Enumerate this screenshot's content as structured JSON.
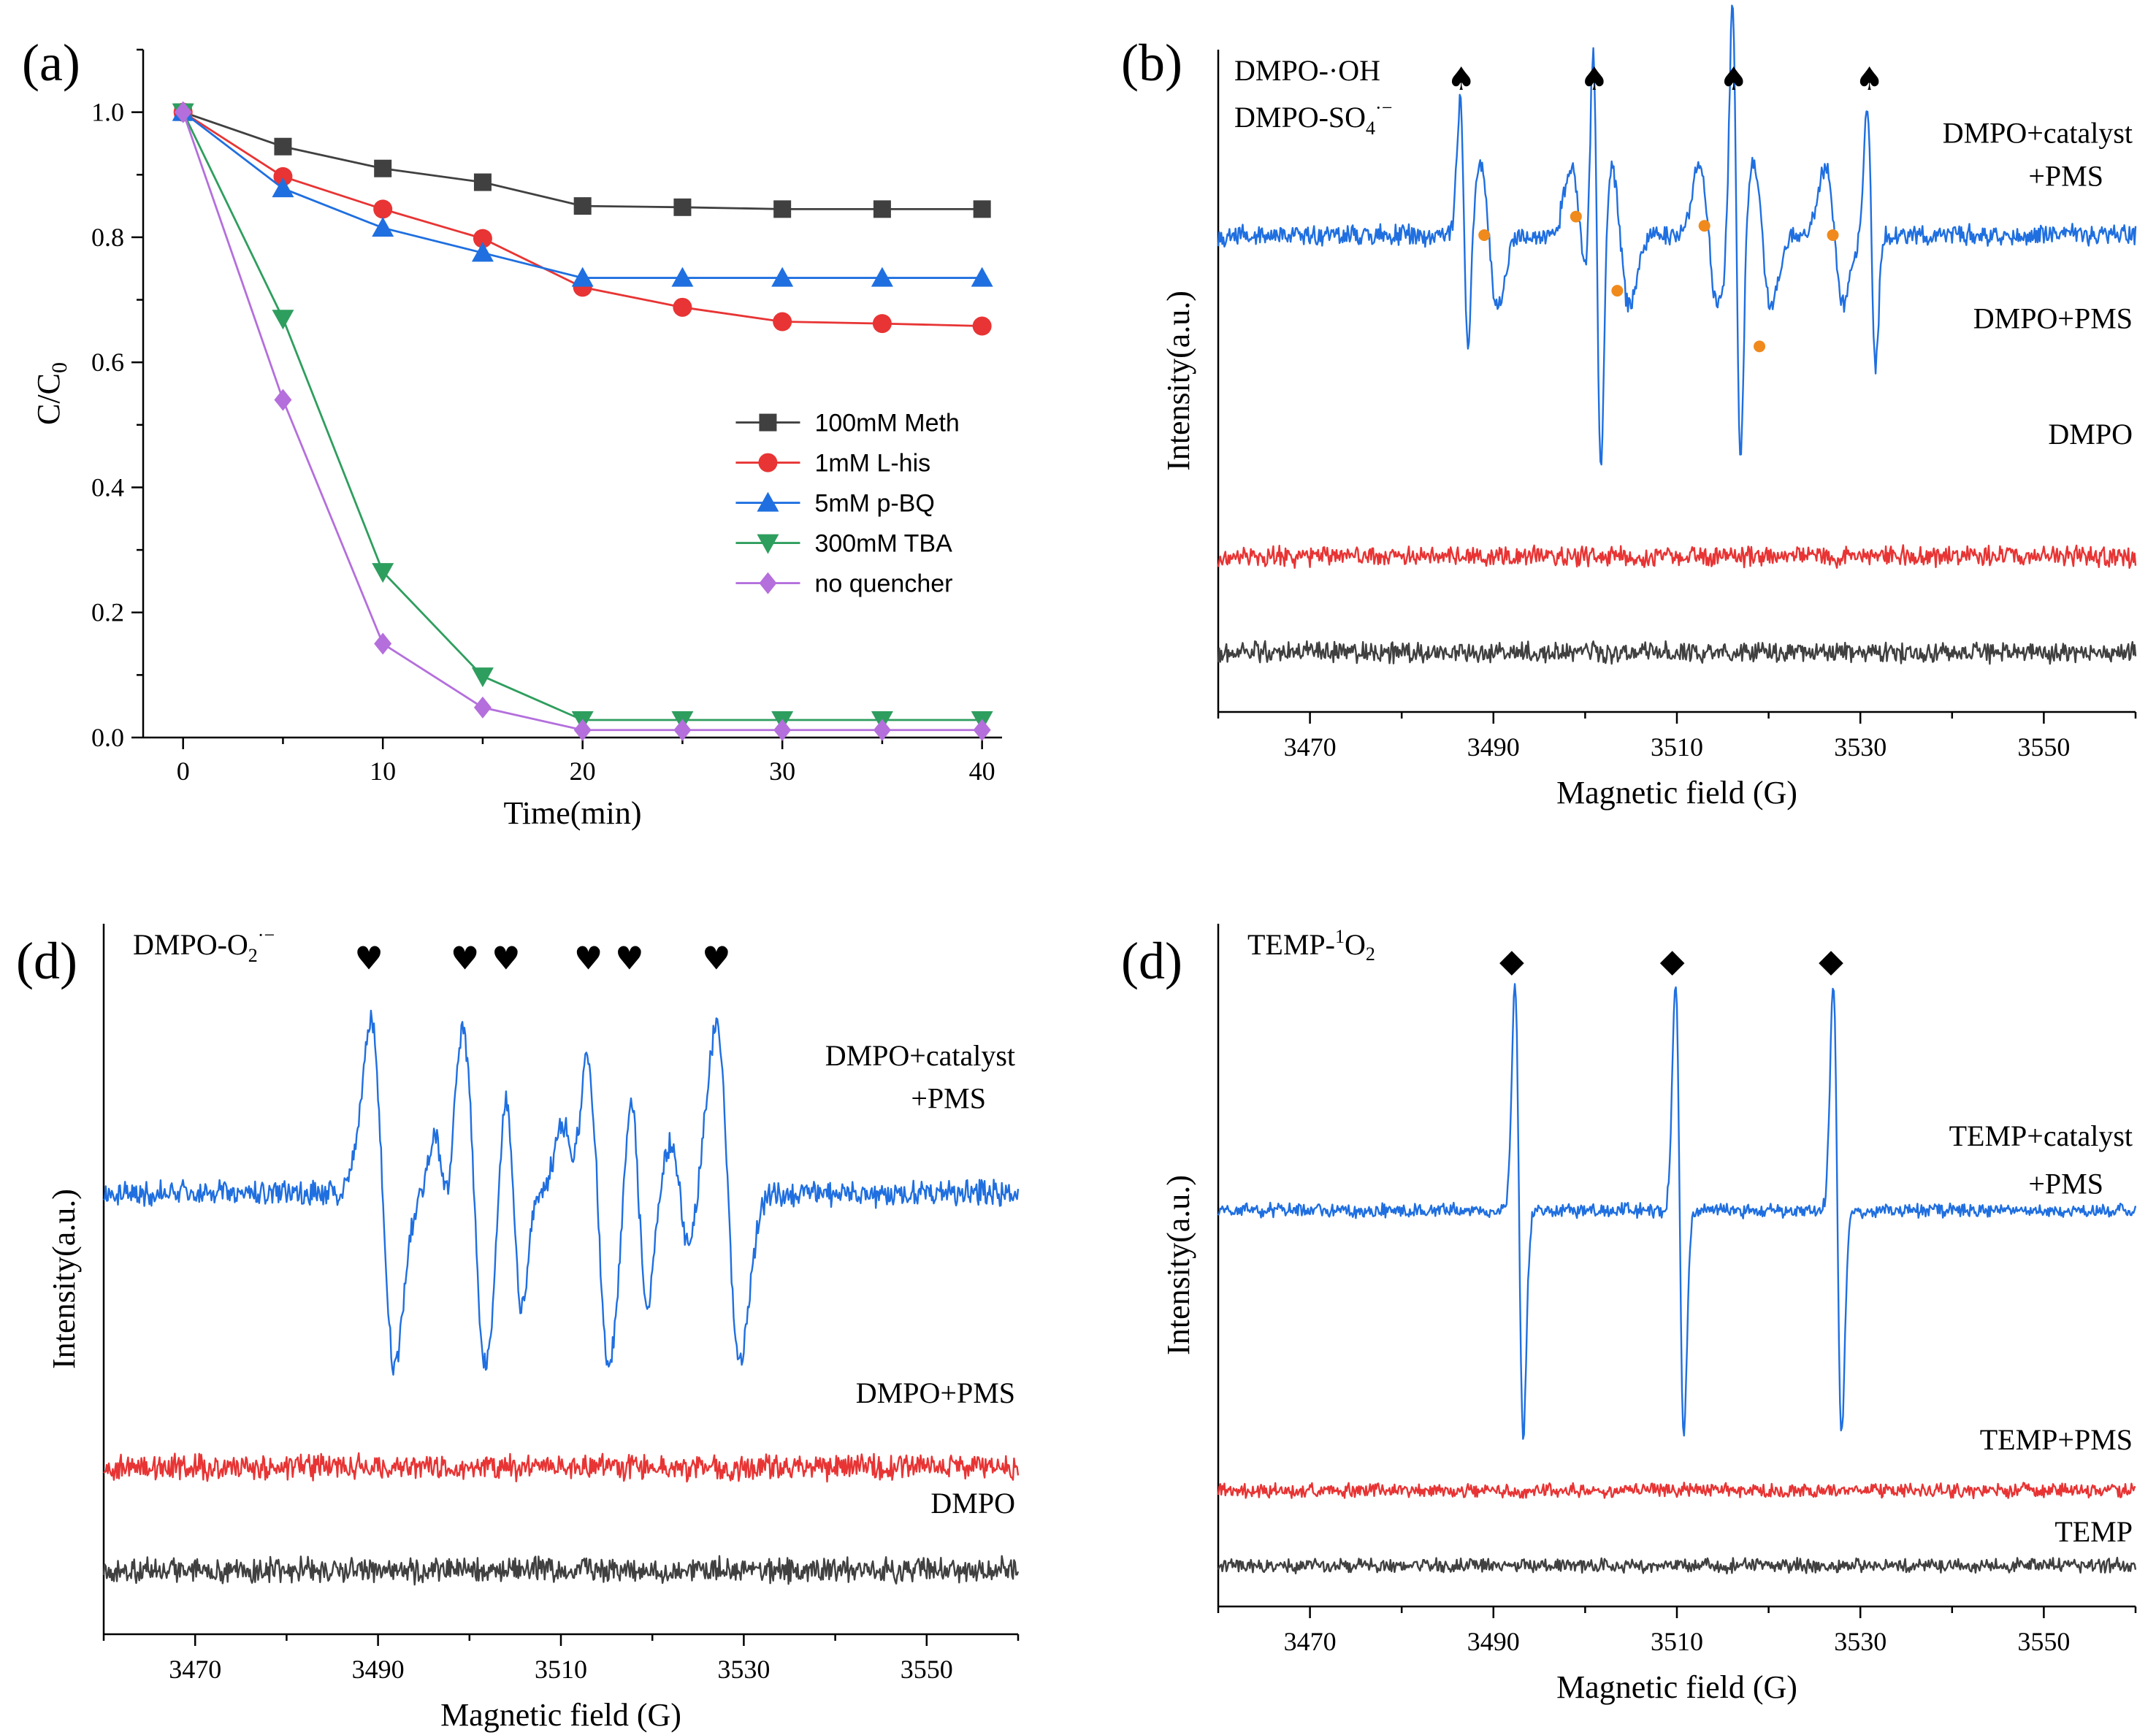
{
  "chart_data": [
    {
      "panel": "(a)",
      "type": "line",
      "xlabel": "Time(min)",
      "ylabel": "C/C",
      "ylabel_sub": "0",
      "xlim": [
        -2,
        41
      ],
      "ylim": [
        0.0,
        1.1
      ],
      "xticks": [
        0,
        10,
        20,
        30,
        40
      ],
      "yticks": [
        0.0,
        0.2,
        0.4,
        0.6,
        0.8,
        1.0
      ],
      "ytick_labels": [
        "0.0",
        "0.2",
        "0.4",
        "0.6",
        "0.8",
        "1.0"
      ],
      "legend_position": "center-right",
      "x": [
        0,
        5,
        10,
        15,
        20,
        25,
        30,
        35,
        40
      ],
      "series": [
        {
          "name": "100mM Meth",
          "color": "#404040",
          "marker": "square",
          "values": [
            1.0,
            0.945,
            0.91,
            0.888,
            0.85,
            0.848,
            0.845,
            0.845,
            0.845
          ]
        },
        {
          "name": "1mM L-his",
          "color": "#e83434",
          "marker": "circle",
          "values": [
            1.0,
            0.897,
            0.845,
            0.798,
            0.72,
            0.688,
            0.665,
            0.662,
            0.658
          ]
        },
        {
          "name": "5mM p-BQ",
          "color": "#1f6fe0",
          "marker": "triangle-up",
          "values": [
            1.0,
            0.878,
            0.815,
            0.775,
            0.735,
            0.735,
            0.735,
            0.735,
            0.735
          ]
        },
        {
          "name": "300mM TBA",
          "color": "#2e9e5e",
          "marker": "triangle-down",
          "values": [
            1.0,
            0.67,
            0.265,
            0.098,
            0.028,
            0.028,
            0.028,
            0.028,
            0.028
          ]
        },
        {
          "name": "no quencher",
          "color": "#b46fdc",
          "marker": "diamond",
          "values": [
            1.0,
            0.54,
            0.15,
            0.048,
            0.012,
            0.012,
            0.012,
            0.012,
            0.012
          ]
        }
      ]
    },
    {
      "panel": "(b)",
      "type": "line",
      "xlabel": "Magnetic field (G)",
      "ylabel": "Intensity(a.u.)",
      "xlim": [
        3460,
        3560
      ],
      "xticks": [
        3470,
        3490,
        3510,
        3530,
        3550
      ],
      "legend": [
        {
          "text": "DMPO-·OH",
          "color": "#1b8a1b"
        },
        {
          "text": "DMPO-SO",
          "sub": "4",
          "sup": "·−",
          "color": "#f08a1c"
        }
      ],
      "marker_symbols": {
        "spade": "♠",
        "dot": "●"
      },
      "series": [
        {
          "name": "DMPO+catalyst",
          "name_line2": "+PMS",
          "color": "#1f6fe0",
          "baseline": 0.72,
          "peaks": [
            {
              "x": 3486.8,
              "amp": 0.55,
              "w": 0.45
            },
            {
              "x": 3501.3,
              "amp": 1.0,
              "w": 0.45
            },
            {
              "x": 3516.5,
              "amp": 1.0,
              "w": 0.45
            },
            {
              "x": 3531.2,
              "amp": 0.55,
              "w": 0.45
            },
            {
              "x": 3489.5,
              "amp": 0.3,
              "w": 1.0
            },
            {
              "x": 3499.5,
              "amp": 0.28,
              "w": 1.0
            },
            {
              "x": 3503.8,
              "amp": 0.3,
              "w": 1.0
            },
            {
              "x": 3513.5,
              "amp": 0.3,
              "w": 1.0
            },
            {
              "x": 3519.3,
              "amp": 0.3,
              "w": 1.0
            },
            {
              "x": 3527.2,
              "amp": 0.28,
              "w": 1.0
            }
          ],
          "noise": 0.012
        },
        {
          "name": "DMPO+PMS",
          "color": "#e83434",
          "baseline": 0.235,
          "peaks": [],
          "noise": 0.012
        },
        {
          "name": "DMPO",
          "color": "#404040",
          "baseline": 0.09,
          "peaks": [],
          "noise": 0.012
        }
      ],
      "markers": [
        {
          "symbol": "spade",
          "x": 3486.5,
          "color": "#1b8a1b",
          "level": 1.0
        },
        {
          "symbol": "spade",
          "x": 3501.0,
          "color": "#1b8a1b",
          "level": 1.0
        },
        {
          "symbol": "spade",
          "x": 3516.2,
          "color": "#1b8a1b",
          "level": 1.0
        },
        {
          "symbol": "spade",
          "x": 3531.0,
          "color": "#1b8a1b",
          "level": 1.0
        },
        {
          "symbol": "dot",
          "x": 3489.0,
          "color": "#f08a1c",
          "level": 0.72
        },
        {
          "symbol": "dot",
          "x": 3499.0,
          "color": "#f08a1c",
          "level": 0.74
        },
        {
          "symbol": "dot",
          "x": 3503.5,
          "color": "#f08a1c",
          "level": 0.66
        },
        {
          "symbol": "dot",
          "x": 3513.0,
          "color": "#f08a1c",
          "level": 0.73
        },
        {
          "symbol": "dot",
          "x": 3519.0,
          "color": "#f08a1c",
          "level": 0.6
        },
        {
          "symbol": "dot",
          "x": 3527.0,
          "color": "#f08a1c",
          "level": 0.72
        }
      ]
    },
    {
      "panel": "(d)",
      "type": "line",
      "xlabel": "Magnetic field (G)",
      "ylabel": "Intensity(a.u.)",
      "xlim": [
        3460,
        3560
      ],
      "xticks": [
        3470,
        3490,
        3510,
        3530,
        3550
      ],
      "legend": [
        {
          "text": "DMPO-O",
          "sub": "2",
          "sup": "·−",
          "color": "#000000"
        }
      ],
      "marker_symbols": {
        "heart": "♥"
      },
      "series": [
        {
          "name": "DMPO+catalyst",
          "name_line2": "+PMS",
          "color": "#1f6fe0",
          "baseline": 0.62,
          "peaks": [
            {
              "x": 3490.5,
              "amp": 1.0,
              "w": 1.3
            },
            {
              "x": 3497.0,
              "amp": 0.3,
              "w": 0.8
            },
            {
              "x": 3500.5,
              "amp": 1.0,
              "w": 1.3
            },
            {
              "x": 3504.8,
              "amp": 0.65,
              "w": 0.9
            },
            {
              "x": 3511.0,
              "amp": 0.35,
              "w": 1.0
            },
            {
              "x": 3514.0,
              "amp": 1.0,
              "w": 1.3
            },
            {
              "x": 3518.5,
              "amp": 0.65,
              "w": 0.9
            },
            {
              "x": 3523.0,
              "amp": 0.3,
              "w": 1.0
            },
            {
              "x": 3528.3,
              "amp": 1.0,
              "w": 1.3
            }
          ],
          "noise": 0.014
        },
        {
          "name": "DMPO+PMS",
          "color": "#e83434",
          "baseline": 0.235,
          "peaks": [],
          "noise": 0.014
        },
        {
          "name": "DMPO",
          "color": "#404040",
          "baseline": 0.09,
          "peaks": [],
          "noise": 0.014
        }
      ],
      "markers": [
        {
          "symbol": "heart",
          "x": 3489.0,
          "color": "#000000",
          "level": 1.0
        },
        {
          "symbol": "heart",
          "x": 3499.5,
          "color": "#000000",
          "level": 1.0
        },
        {
          "symbol": "heart",
          "x": 3504.0,
          "color": "#000000",
          "level": 1.0
        },
        {
          "symbol": "heart",
          "x": 3513.0,
          "color": "#000000",
          "level": 1.0
        },
        {
          "symbol": "heart",
          "x": 3517.5,
          "color": "#000000",
          "level": 1.0
        },
        {
          "symbol": "heart",
          "x": 3527.0,
          "color": "#000000",
          "level": 1.0
        }
      ]
    },
    {
      "panel": "(d)",
      "type": "line",
      "xlabel": "Magnetic field (G)",
      "ylabel": "Intensity(a.u.)",
      "xlim": [
        3460,
        3560
      ],
      "xticks": [
        3470,
        3490,
        3510,
        3530,
        3550
      ],
      "legend": [
        {
          "text": "TEMP-",
          "sup_pre": "1",
          "after": "O",
          "sub": "2",
          "color": "#000000"
        }
      ],
      "marker_symbols": {
        "diamond": "◆"
      },
      "series": [
        {
          "name": "TEMP+catalyst",
          "name_line2": "+PMS",
          "color": "#1f6fe0",
          "baseline": 0.58,
          "peaks": [
            {
              "x": 3492.8,
              "amp": 1.0,
              "w": 0.45
            },
            {
              "x": 3510.3,
              "amp": 1.0,
              "w": 0.45
            },
            {
              "x": 3527.5,
              "amp": 1.0,
              "w": 0.45
            }
          ],
          "noise": 0.008
        },
        {
          "name": "TEMP+PMS",
          "color": "#e83434",
          "baseline": 0.17,
          "peaks": [],
          "noise": 0.008
        },
        {
          "name": "TEMP",
          "color": "#404040",
          "baseline": 0.06,
          "peaks": [],
          "noise": 0.008
        }
      ],
      "markers": [
        {
          "symbol": "diamond",
          "x": 3492.0,
          "color": "#000000",
          "level": 1.0
        },
        {
          "symbol": "diamond",
          "x": 3509.5,
          "color": "#000000",
          "level": 1.0
        },
        {
          "symbol": "diamond",
          "x": 3526.8,
          "color": "#000000",
          "level": 1.0
        }
      ]
    }
  ]
}
